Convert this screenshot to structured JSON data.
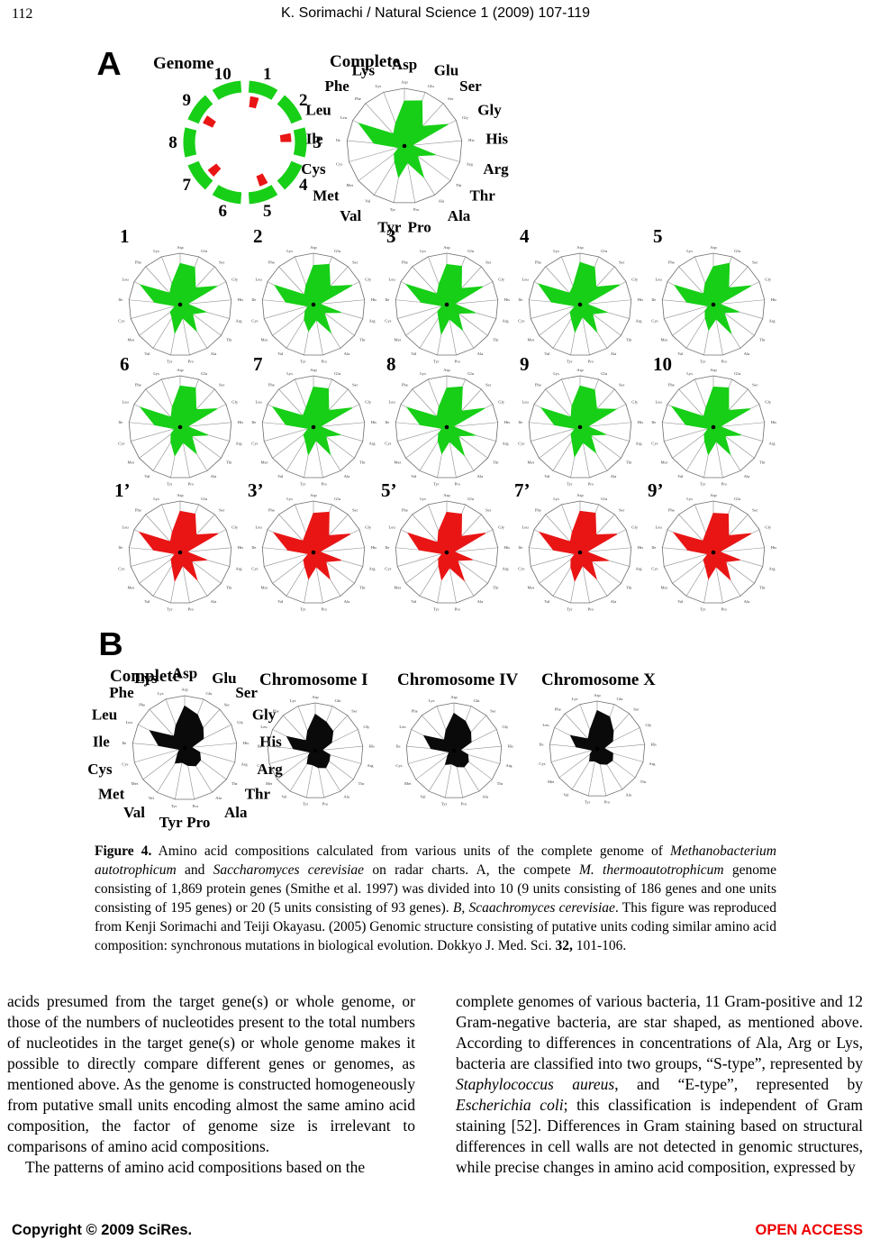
{
  "header": {
    "page_number": "112",
    "running_title": "K. Sorimachi / Natural Science 1 (2009) 107-119"
  },
  "figure": {
    "panel_a_label": "A",
    "panel_b_label": "B",
    "genome": {
      "title": "Genome",
      "unit_numbers": [
        "1",
        "2",
        "3",
        "4",
        "5",
        "6",
        "7",
        "8",
        "9",
        "10"
      ],
      "red_marked_units": [
        "1",
        "3",
        "5",
        "7",
        "9"
      ],
      "ring_color": "#17cf17",
      "marker_color": "#e91515"
    },
    "complete_a_title": "Complete",
    "panel_b_titles": [
      "Complete",
      "Chromosome I",
      "Chromosome IV",
      "Chromosome X"
    ]
  },
  "chart_data": {
    "type": "radar",
    "categories": [
      "Asp",
      "Glu",
      "Ser",
      "Gly",
      "His",
      "Arg",
      "Thr",
      "Ala",
      "Pro",
      "Tyr",
      "Val",
      "Met",
      "Cys",
      "Ile",
      "Leu",
      "Phe",
      "Lys"
    ],
    "axis_range": [
      0,
      1
    ],
    "panel_a_complete": {
      "label": "Complete",
      "color": "#17cf17",
      "values": [
        0.78,
        0.84,
        0.46,
        0.84,
        0.13,
        0.56,
        0.28,
        0.63,
        0.29,
        0.55,
        0.32,
        0.22,
        0.1,
        0.53,
        0.88,
        0.28,
        0.42
      ]
    },
    "panel_a_units": [
      {
        "label": "1",
        "color": "#17cf17",
        "values": [
          0.8,
          0.78,
          0.44,
          0.8,
          0.14,
          0.52,
          0.3,
          0.6,
          0.26,
          0.56,
          0.3,
          0.24,
          0.1,
          0.5,
          0.86,
          0.3,
          0.44
        ]
      },
      {
        "label": "2",
        "color": "#17cf17",
        "values": [
          0.76,
          0.84,
          0.48,
          0.84,
          0.12,
          0.56,
          0.26,
          0.64,
          0.3,
          0.52,
          0.34,
          0.2,
          0.11,
          0.54,
          0.84,
          0.26,
          0.4
        ]
      },
      {
        "label": "3",
        "color": "#17cf17",
        "values": [
          0.78,
          0.8,
          0.42,
          0.78,
          0.15,
          0.58,
          0.28,
          0.58,
          0.28,
          0.58,
          0.3,
          0.22,
          0.09,
          0.5,
          0.88,
          0.28,
          0.42
        ]
      },
      {
        "label": "4",
        "color": "#17cf17",
        "values": [
          0.82,
          0.78,
          0.46,
          0.86,
          0.13,
          0.54,
          0.3,
          0.62,
          0.24,
          0.54,
          0.32,
          0.24,
          0.1,
          0.56,
          0.9,
          0.3,
          0.38
        ]
      },
      {
        "label": "5",
        "color": "#17cf17",
        "values": [
          0.74,
          0.86,
          0.44,
          0.82,
          0.12,
          0.52,
          0.26,
          0.66,
          0.28,
          0.5,
          0.3,
          0.2,
          0.1,
          0.52,
          0.84,
          0.28,
          0.44
        ]
      },
      {
        "label": "6",
        "color": "#17cf17",
        "values": [
          0.8,
          0.82,
          0.46,
          0.8,
          0.14,
          0.56,
          0.28,
          0.6,
          0.3,
          0.56,
          0.34,
          0.22,
          0.11,
          0.5,
          0.86,
          0.26,
          0.42
        ]
      },
      {
        "label": "7",
        "color": "#17cf17",
        "values": [
          0.78,
          0.8,
          0.44,
          0.84,
          0.13,
          0.54,
          0.3,
          0.62,
          0.26,
          0.54,
          0.3,
          0.24,
          0.1,
          0.54,
          0.88,
          0.3,
          0.4
        ]
      },
      {
        "label": "8",
        "color": "#17cf17",
        "values": [
          0.76,
          0.84,
          0.42,
          0.82,
          0.12,
          0.58,
          0.28,
          0.64,
          0.28,
          0.52,
          0.32,
          0.2,
          0.09,
          0.52,
          0.86,
          0.28,
          0.42
        ]
      },
      {
        "label": "9",
        "color": "#17cf17",
        "values": [
          0.8,
          0.78,
          0.48,
          0.78,
          0.15,
          0.52,
          0.26,
          0.58,
          0.3,
          0.58,
          0.3,
          0.22,
          0.1,
          0.5,
          0.84,
          0.26,
          0.44
        ]
      },
      {
        "label": "10",
        "color": "#17cf17",
        "values": [
          0.78,
          0.82,
          0.44,
          0.8,
          0.13,
          0.56,
          0.28,
          0.62,
          0.28,
          0.54,
          0.32,
          0.22,
          0.1,
          0.54,
          0.9,
          0.28,
          0.4
        ]
      }
    ],
    "panel_a_half_units": [
      {
        "label": "1’",
        "color": "#e91515",
        "values": [
          0.8,
          0.8,
          0.46,
          0.82,
          0.13,
          0.54,
          0.28,
          0.62,
          0.26,
          0.56,
          0.3,
          0.22,
          0.1,
          0.52,
          0.88,
          0.28,
          0.42
        ]
      },
      {
        "label": "3’",
        "color": "#e91515",
        "values": [
          0.76,
          0.84,
          0.44,
          0.8,
          0.12,
          0.56,
          0.3,
          0.6,
          0.28,
          0.52,
          0.32,
          0.24,
          0.1,
          0.5,
          0.86,
          0.3,
          0.4
        ]
      },
      {
        "label": "5’",
        "color": "#e91515",
        "values": [
          0.78,
          0.8,
          0.42,
          0.84,
          0.14,
          0.52,
          0.26,
          0.64,
          0.3,
          0.54,
          0.3,
          0.2,
          0.09,
          0.54,
          0.84,
          0.26,
          0.44
        ]
      },
      {
        "label": "7’",
        "color": "#e91515",
        "values": [
          0.8,
          0.82,
          0.46,
          0.8,
          0.13,
          0.58,
          0.28,
          0.6,
          0.26,
          0.56,
          0.34,
          0.22,
          0.1,
          0.52,
          0.88,
          0.28,
          0.42
        ]
      },
      {
        "label": "9’",
        "color": "#e91515",
        "values": [
          0.76,
          0.8,
          0.44,
          0.82,
          0.12,
          0.54,
          0.3,
          0.62,
          0.28,
          0.52,
          0.3,
          0.24,
          0.11,
          0.5,
          0.86,
          0.3,
          0.4
        ]
      }
    ],
    "panel_b_charts": [
      {
        "label": "Complete",
        "color": "#0a0a0a",
        "values": [
          0.8,
          0.68,
          0.52,
          0.4,
          0.13,
          0.3,
          0.38,
          0.4,
          0.34,
          0.28,
          0.34,
          0.16,
          0.1,
          0.5,
          0.74,
          0.3,
          0.46
        ]
      },
      {
        "label": "Chromosome I",
        "color": "#0a0a0a",
        "values": [
          0.76,
          0.64,
          0.55,
          0.38,
          0.14,
          0.32,
          0.36,
          0.42,
          0.36,
          0.3,
          0.32,
          0.18,
          0.11,
          0.46,
          0.66,
          0.28,
          0.44
        ]
      },
      {
        "label": "Chromosome IV",
        "color": "#0a0a0a",
        "values": [
          0.78,
          0.66,
          0.52,
          0.4,
          0.13,
          0.3,
          0.38,
          0.4,
          0.34,
          0.28,
          0.34,
          0.16,
          0.1,
          0.48,
          0.7,
          0.3,
          0.46
        ]
      },
      {
        "label": "Chromosome X",
        "color": "#0a0a0a",
        "values": [
          0.8,
          0.72,
          0.5,
          0.36,
          0.14,
          0.34,
          0.4,
          0.38,
          0.32,
          0.26,
          0.3,
          0.18,
          0.1,
          0.44,
          0.62,
          0.28,
          0.42
        ]
      }
    ]
  },
  "caption": {
    "segments": [
      {
        "t": "Figure 4.",
        "b": 1
      },
      {
        "t": " Amino acid compositions calculated from various units of the complete genome of "
      },
      {
        "t": "Methanobacterium autotrophicum",
        "i": 1
      },
      {
        "t": " and "
      },
      {
        "t": "Saccharomyces cerevisiae",
        "i": 1
      },
      {
        "t": " on radar charts. A, the compete "
      },
      {
        "t": "M. thermoautotrophicum",
        "i": 1
      },
      {
        "t": " genome consisting of 1,869 protein genes (Smithe et al. 1997) was divided into 10 (9 units consisting of 186 genes and one units consisting of 195 genes) or 20 (5 units consisting of 93 genes). "
      },
      {
        "t": "B, Scaachromyces cerevisiae",
        "i": 1
      },
      {
        "t": ". This figure was reproduced from Kenji Sorimachi and Teiji Okayasu. (2005) Genomic structure consisting of putative units coding similar amino acid composition: synchronous mutations in biological evolution. Dokkyo J. Med. Sci. "
      },
      {
        "t": "32,",
        "b": 1
      },
      {
        "t": " 101-106."
      }
    ]
  },
  "body": {
    "left_paragraphs": [
      {
        "segments": [
          {
            "t": "acids presumed from the target gene(s) or whole genome, or those of the numbers of nucleotides present to the total numbers of nucleotides in the target gene(s) or whole genome makes it possible to directly compare different genes or genomes, as mentioned above. As the genome is constructed homogeneously from putative small units encoding almost the same amino acid composition, the factor of genome size is irrelevant to comparisons of amino acid compositions."
          }
        ]
      },
      {
        "segments": [
          {
            "t": "The patterns of amino acid compositions based on the"
          }
        ]
      }
    ],
    "right_paragraphs": [
      {
        "segments": [
          {
            "t": "complete genomes of various bacteria, 11 Gram-positive and 12 Gram-negative bacteria, are star shaped, as mentioned above. According to differences in concentrations of Ala, Arg or Lys, bacteria are classified into two groups, “S-type”, represented by "
          },
          {
            "t": "Staphylococcus aureus",
            "i": 1
          },
          {
            "t": ", and “E-type”, represented by "
          },
          {
            "t": "Escherichia coli",
            "i": 1
          },
          {
            "t": "; this classification is independent of Gram staining [52]. Differences in Gram staining based on structural differences in cell walls are not detected in genomic structures, while precise changes in amino acid composition, expressed by"
          }
        ]
      }
    ]
  },
  "footer": {
    "copyright": "Copyright © 2009 SciRes.",
    "open_access": "OPEN ACCESS",
    "open_access_color": "#ee0000"
  }
}
